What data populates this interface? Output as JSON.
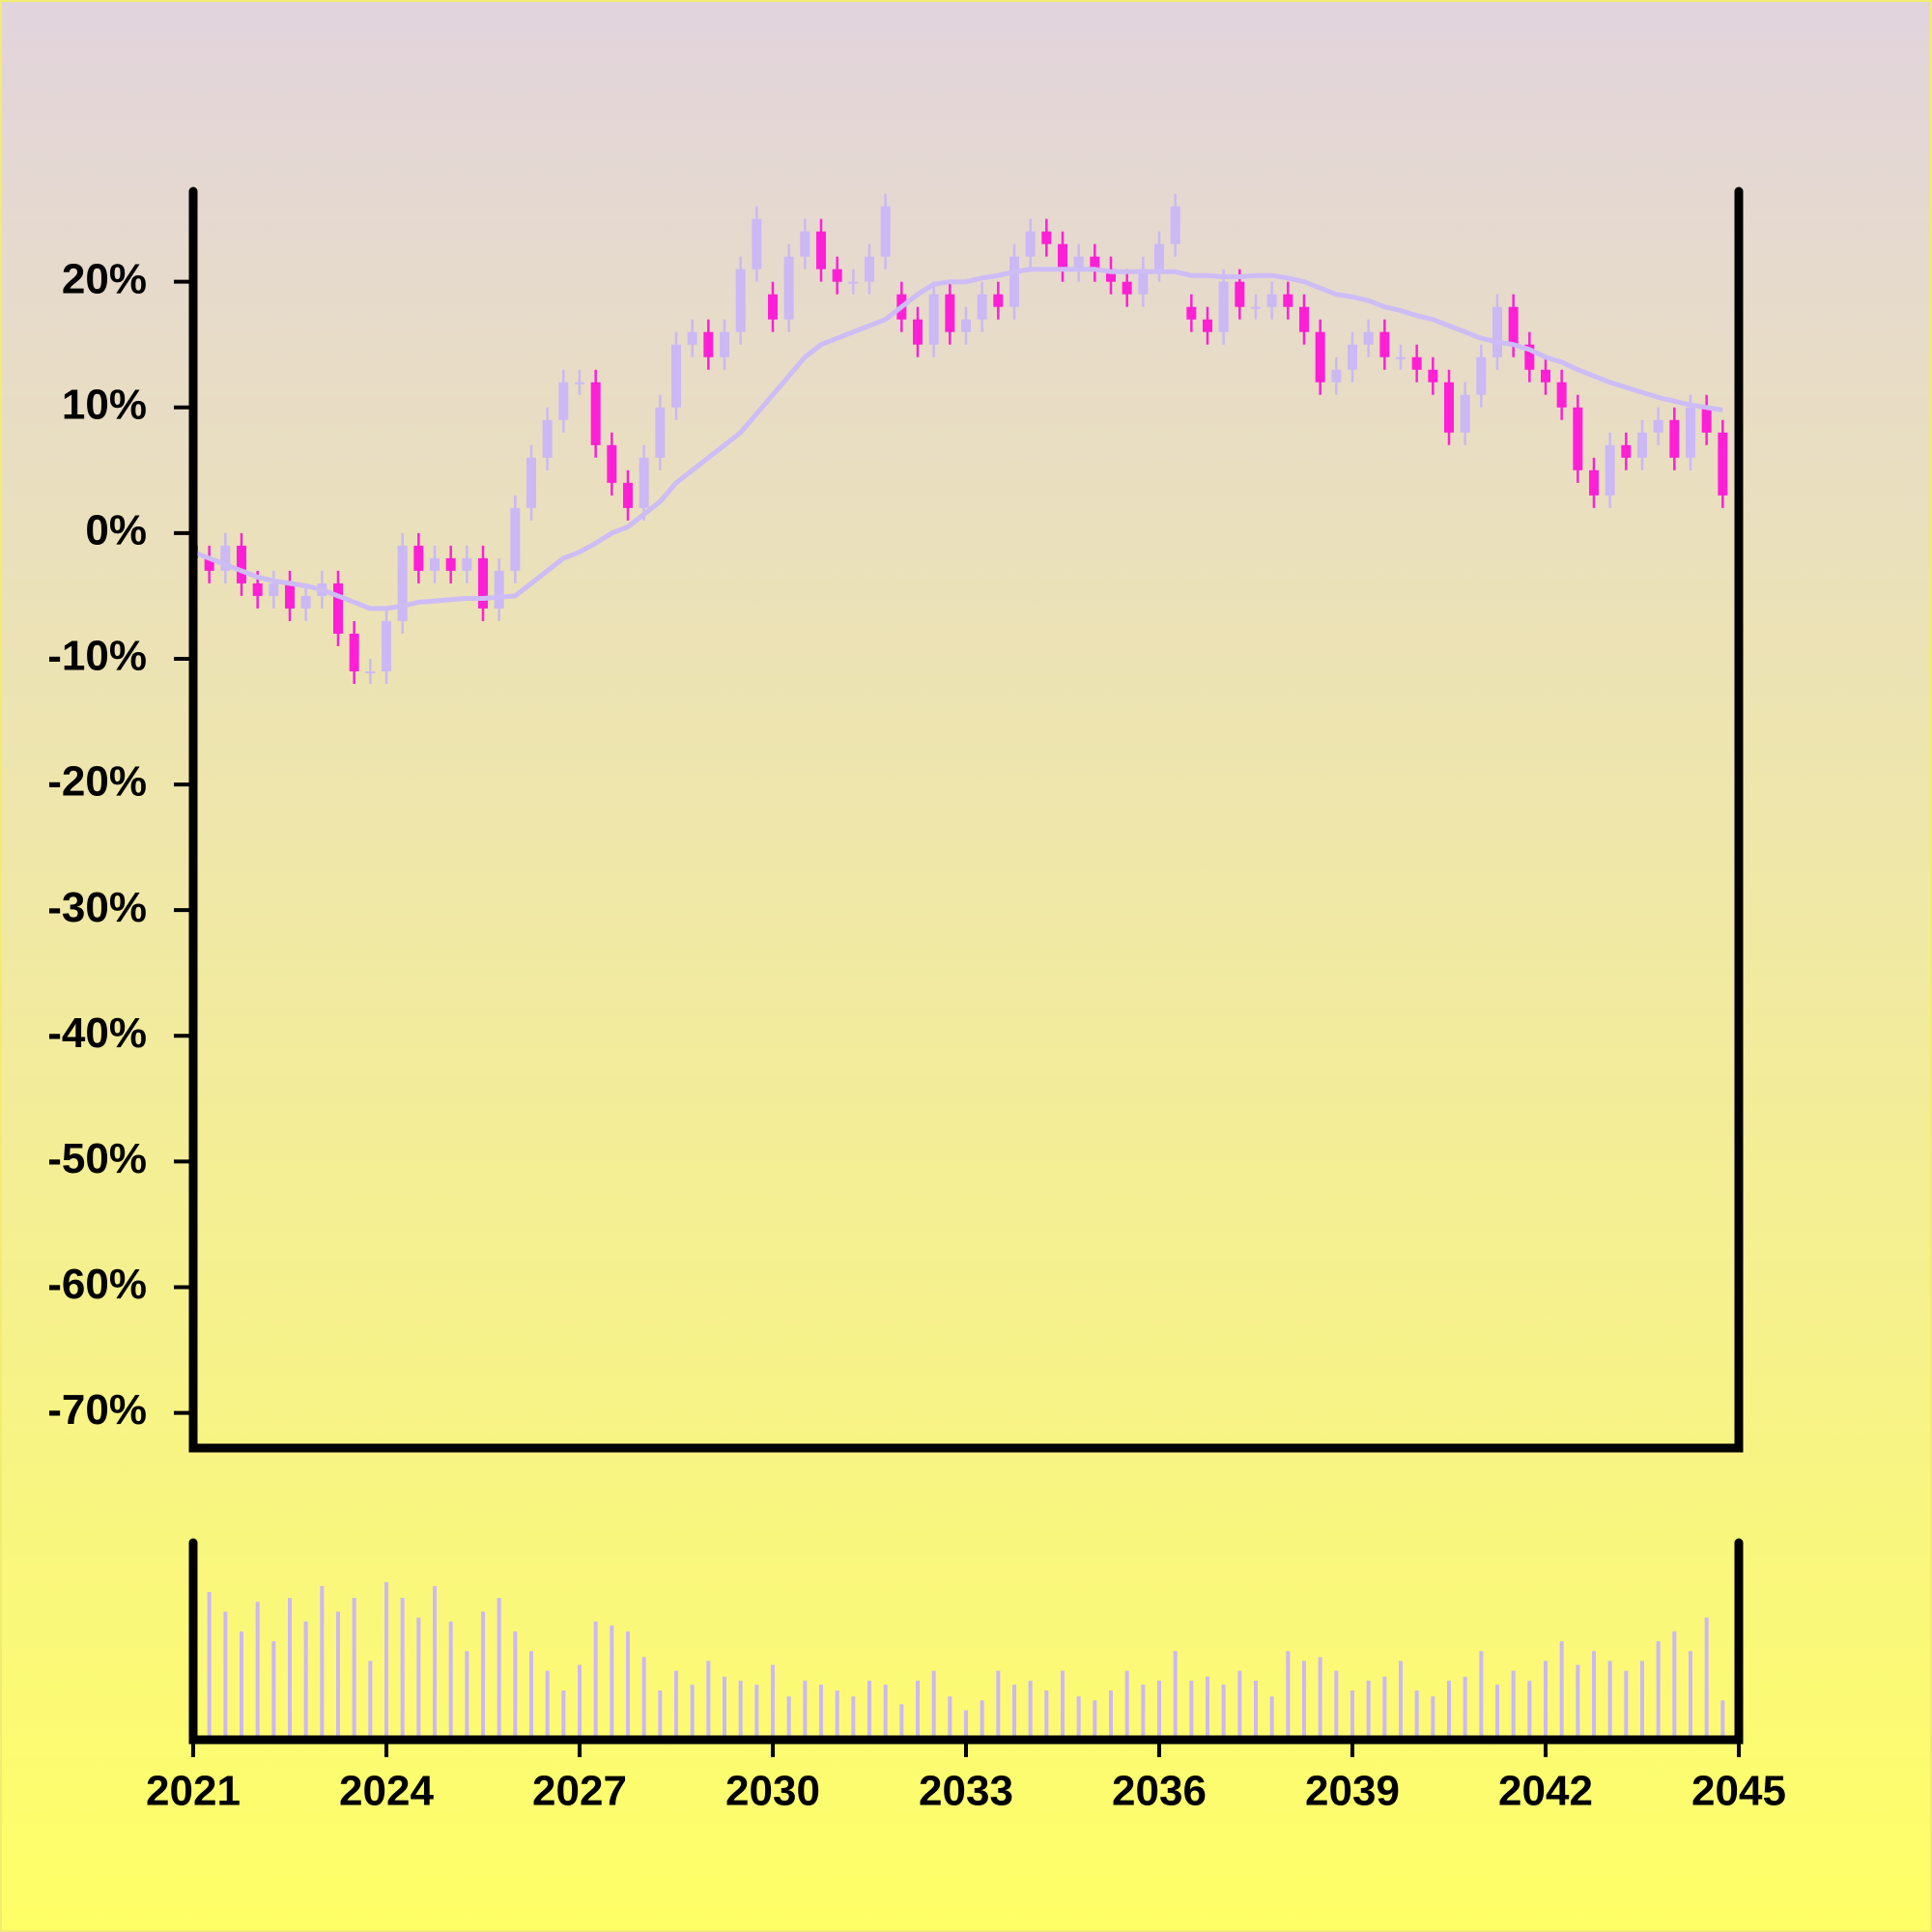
{
  "chart_data": {
    "type": "candlestick",
    "x": [
      2021,
      2021.25,
      2021.5,
      2021.75,
      2022,
      2022.25,
      2022.5,
      2022.75,
      2023,
      2023.25,
      2023.5,
      2023.75,
      2024,
      2024.25,
      2024.5,
      2024.75,
      2025,
      2025.25,
      2025.5,
      2025.75,
      2026,
      2026.25,
      2026.5,
      2026.75,
      2027,
      2027.25,
      2027.5,
      2027.75,
      2028,
      2028.25,
      2028.5,
      2028.75,
      2029,
      2029.25,
      2029.5,
      2029.75,
      2030,
      2030.25,
      2030.5,
      2030.75,
      2031,
      2031.25,
      2031.5,
      2031.75,
      2032,
      2032.25,
      2032.5,
      2032.75,
      2033,
      2033.25,
      2033.5,
      2033.75,
      2034,
      2034.25,
      2034.5,
      2034.75,
      2035,
      2035.25,
      2035.5,
      2035.75,
      2036,
      2036.25,
      2036.5,
      2036.75,
      2037,
      2037.25,
      2037.5,
      2037.75,
      2038,
      2038.25,
      2038.5,
      2038.75,
      2039,
      2039.25,
      2039.5,
      2039.75,
      2040,
      2040.25,
      2040.5,
      2040.75,
      2041,
      2041.25,
      2041.5,
      2041.75,
      2042,
      2042.25,
      2042.5,
      2042.75,
      2043,
      2043.25,
      2043.5,
      2043.75,
      2044,
      2044.25,
      2044.5,
      2044.75
    ],
    "open": [
      -1,
      -2,
      -3,
      -1,
      -4,
      -5,
      -4,
      -6,
      -5,
      -4,
      -8,
      -11,
      -11,
      -7,
      -1,
      -3,
      -2,
      -3,
      -2,
      -6,
      -3,
      2,
      6,
      9,
      12,
      12,
      7,
      4,
      2,
      6,
      10,
      15,
      16,
      14,
      16,
      21,
      19,
      17,
      22,
      24,
      21,
      20,
      20,
      22,
      19,
      17,
      15,
      19,
      16,
      17,
      19,
      18,
      22,
      24,
      23,
      21,
      22,
      21,
      20,
      19,
      21,
      23,
      18,
      17,
      16,
      20,
      18,
      18,
      19,
      18,
      16,
      12,
      13,
      15,
      16,
      14,
      14,
      13,
      12,
      8,
      11,
      14,
      18,
      15,
      13,
      12,
      10,
      5,
      3,
      7,
      6,
      8,
      9,
      6,
      10,
      8
    ],
    "high": [
      0,
      -1,
      0,
      0,
      -3,
      -3,
      -3,
      -4,
      -3,
      -3,
      -7,
      -10,
      -6,
      0,
      0,
      -1,
      -1,
      -1,
      -1,
      -2,
      3,
      7,
      10,
      13,
      13,
      13,
      8,
      5,
      7,
      11,
      16,
      17,
      17,
      17,
      22,
      26,
      20,
      23,
      25,
      25,
      22,
      21,
      23,
      27,
      20,
      18,
      20,
      20,
      18,
      20,
      20,
      23,
      25,
      25,
      24,
      23,
      23,
      22,
      21,
      22,
      24,
      27,
      19,
      18,
      21,
      21,
      19,
      20,
      20,
      19,
      17,
      14,
      16,
      17,
      17,
      15,
      15,
      14,
      13,
      12,
      15,
      19,
      19,
      16,
      14,
      13,
      11,
      6,
      8,
      8,
      9,
      10,
      10,
      11,
      11,
      9
    ],
    "low": [
      -3,
      -4,
      -4,
      -5,
      -6,
      -6,
      -7,
      -7,
      -6,
      -9,
      -12,
      -12,
      -12,
      -8,
      -4,
      -4,
      -4,
      -4,
      -7,
      -7,
      -4,
      1,
      5,
      8,
      11,
      6,
      3,
      1,
      1,
      5,
      9,
      14,
      13,
      13,
      15,
      20,
      16,
      16,
      21,
      20,
      19,
      19,
      19,
      21,
      16,
      14,
      14,
      15,
      15,
      16,
      17,
      17,
      21,
      22,
      20,
      20,
      20,
      19,
      18,
      18,
      20,
      22,
      16,
      15,
      15,
      17,
      17,
      17,
      17,
      15,
      11,
      11,
      12,
      14,
      13,
      13,
      12,
      11,
      7,
      7,
      10,
      13,
      14,
      12,
      11,
      9,
      4,
      2,
      2,
      5,
      5,
      7,
      5,
      5,
      7,
      2
    ],
    "close": [
      -2,
      -3,
      -1,
      -4,
      -5,
      -4,
      -6,
      -5,
      -4,
      -8,
      -11,
      -11,
      -7,
      -1,
      -3,
      -2,
      -3,
      -2,
      -6,
      -3,
      2,
      6,
      9,
      12,
      12,
      7,
      4,
      2,
      6,
      10,
      15,
      16,
      14,
      16,
      21,
      25,
      17,
      22,
      24,
      21,
      20,
      20,
      22,
      26,
      17,
      15,
      19,
      16,
      17,
      19,
      18,
      22,
      24,
      23,
      21,
      22,
      21,
      20,
      19,
      21,
      23,
      26,
      17,
      16,
      20,
      18,
      18,
      19,
      18,
      16,
      12,
      13,
      15,
      16,
      14,
      14,
      13,
      12,
      8,
      11,
      14,
      18,
      15,
      13,
      12,
      10,
      5,
      3,
      7,
      6,
      8,
      9,
      6,
      10,
      8,
      3
    ],
    "volume": [
      45,
      75,
      65,
      55,
      70,
      50,
      72,
      60,
      78,
      65,
      72,
      40,
      80,
      72,
      62,
      78,
      60,
      45,
      65,
      72,
      55,
      45,
      35,
      25,
      38,
      60,
      58,
      55,
      42,
      25,
      35,
      28,
      40,
      32,
      30,
      28,
      38,
      22,
      30,
      28,
      25,
      22,
      30,
      28,
      18,
      30,
      35,
      22,
      15,
      20,
      35,
      28,
      30,
      25,
      35,
      22,
      20,
      25,
      35,
      28,
      30,
      45,
      30,
      32,
      28,
      35,
      30,
      22,
      45,
      40,
      42,
      35,
      25,
      30,
      32,
      40,
      25,
      22,
      30,
      32,
      45,
      28,
      35,
      30,
      40,
      50,
      38,
      45,
      40,
      35,
      40,
      50,
      55,
      45,
      62,
      20
    ],
    "ma": {
      "color": "#cdbcf6",
      "values": [
        -1.5,
        -2,
        -2.5,
        -3,
        -3.5,
        -3.8,
        -4,
        -4.2,
        -4.5,
        -5,
        -5.5,
        -6,
        -6,
        -5.8,
        -5.5,
        -5.4,
        -5.3,
        -5.2,
        -5.2,
        -5.1,
        -5,
        -4,
        -3,
        -2,
        -1.5,
        -0.8,
        0,
        0.5,
        1.5,
        2.5,
        4,
        5,
        6,
        7,
        8,
        9.5,
        11,
        12.5,
        14,
        15,
        15.5,
        16,
        16.5,
        17,
        18,
        19,
        19.8,
        20,
        20,
        20.3,
        20.5,
        20.8,
        21,
        21,
        21,
        21,
        21,
        20.8,
        20.8,
        20.8,
        20.8,
        20.8,
        20.5,
        20.5,
        20.4,
        20.4,
        20.5,
        20.5,
        20.3,
        20,
        19.5,
        19,
        18.8,
        18.5,
        18,
        17.7,
        17.3,
        17,
        16.5,
        16,
        15.5,
        15.2,
        15,
        14.6,
        14,
        13.6,
        13,
        12.5,
        12,
        11.6,
        11.2,
        10.8,
        10.5,
        10.2,
        10,
        9.8
      ]
    },
    "up_color": "#cbb8f5",
    "down_color": "#ff1fd6",
    "volume_color": "#cbb8f5",
    "xlim": [
      2021,
      2045
    ],
    "xticks": [
      2021,
      2024,
      2027,
      2030,
      2033,
      2036,
      2039,
      2042,
      2045
    ],
    "ylim": [
      -72.8,
      27.2
    ],
    "yticks": [
      {
        "value": 20,
        "label": "20%"
      },
      {
        "value": 10,
        "label": "10%"
      },
      {
        "value": 0,
        "label": "0%"
      },
      {
        "value": -10,
        "label": "-10%"
      },
      {
        "value": -20,
        "label": "-20%"
      },
      {
        "value": -30,
        "label": "-30%"
      },
      {
        "value": -40,
        "label": "-40%"
      },
      {
        "value": -50,
        "label": "-50%"
      },
      {
        "value": -60,
        "label": "-60%"
      },
      {
        "value": -70,
        "label": "-70%"
      }
    ],
    "volume_lim": [
      0,
      100
    ]
  }
}
